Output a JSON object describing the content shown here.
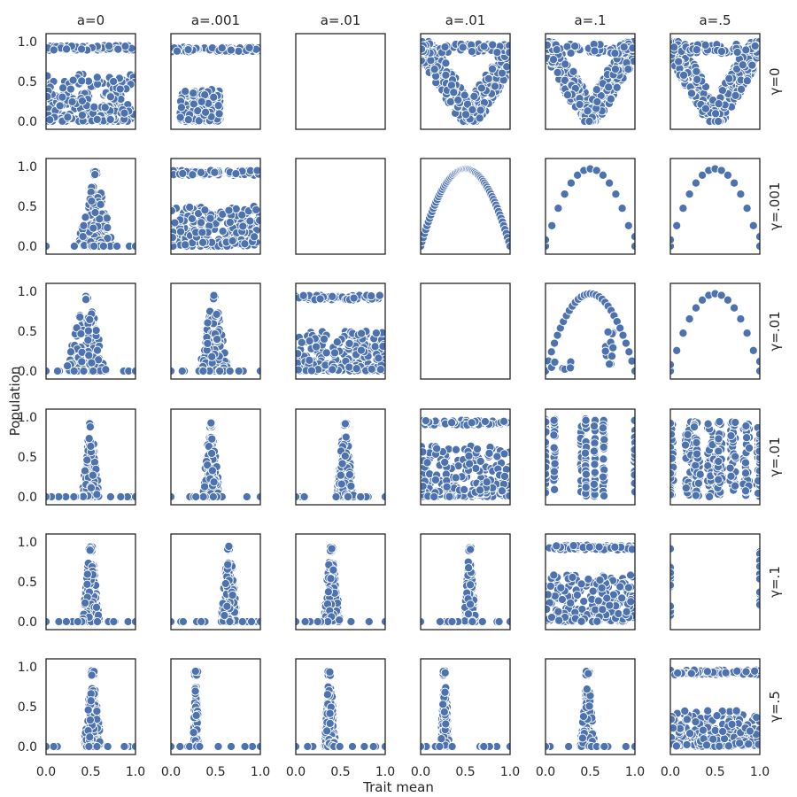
{
  "chart_data": {
    "type": "scatter",
    "xlabel": "Trait mean",
    "ylabel": "Population",
    "xlim": [
      0,
      1
    ],
    "ylim": [
      -0.1,
      1.1
    ],
    "xticks": [
      "0.0",
      "0.5",
      "1.0"
    ],
    "yticks": [
      "0.0",
      "0.5",
      "1.0"
    ],
    "column_titles": [
      "a=0",
      "a=.001",
      "a=.01",
      "a=.01",
      "a=.1",
      "a=.5"
    ],
    "row_titles": [
      "γ=0",
      "γ=.001",
      "γ=.01",
      "γ=.01",
      "γ=.1",
      "γ=.5"
    ],
    "marker_color": "#4c72b0",
    "panels": [
      [
        {
          "pattern": "band_cluster",
          "top": 0.92,
          "lowMax": 0.6
        },
        {
          "pattern": "band_cluster",
          "top": 0.9,
          "lowMax": 0.4,
          "xmin": 0.1,
          "xmax": 0.55
        },
        {
          "pattern": "empty"
        },
        {
          "pattern": "vshape",
          "center": 0.55
        },
        {
          "pattern": "vshape",
          "center": 0.5
        },
        {
          "pattern": "vshape",
          "center": 0.5
        }
      ],
      [
        {
          "pattern": "peak",
          "center": 0.55,
          "top": 0.95,
          "width": 0.06
        },
        {
          "pattern": "band_cluster",
          "top": 0.92,
          "lowMax": 0.5
        },
        {
          "pattern": "empty"
        },
        {
          "pattern": "arch",
          "dense": true
        },
        {
          "pattern": "arch",
          "dense": false
        },
        {
          "pattern": "arch",
          "dense": false
        }
      ],
      [
        {
          "pattern": "peak",
          "center": 0.45,
          "top": 0.95,
          "width": 0.07
        },
        {
          "pattern": "peak",
          "center": 0.48,
          "top": 0.95,
          "width": 0.05
        },
        {
          "pattern": "band_cluster",
          "top": 0.92,
          "lowMax": 0.5
        },
        {
          "pattern": "empty"
        },
        {
          "pattern": "arch_partial"
        },
        {
          "pattern": "arch",
          "dense": false
        }
      ],
      [
        {
          "pattern": "peak",
          "center": 0.5,
          "top": 0.93,
          "width": 0.03
        },
        {
          "pattern": "peak",
          "center": 0.45,
          "top": 0.93,
          "width": 0.03
        },
        {
          "pattern": "peak",
          "center": 0.55,
          "top": 0.93,
          "width": 0.03
        },
        {
          "pattern": "band_cluster",
          "top": 0.93,
          "lowMax": 0.65
        },
        {
          "pattern": "columns",
          "xs": [
            0.0,
            0.1,
            0.4,
            0.45,
            0.55,
            0.65,
            1.0
          ]
        },
        {
          "pattern": "columns_wide"
        }
      ],
      [
        {
          "pattern": "peak",
          "center": 0.5,
          "top": 0.95,
          "width": 0.03
        },
        {
          "pattern": "peak",
          "center": 0.65,
          "top": 0.95,
          "width": 0.03
        },
        {
          "pattern": "peak",
          "center": 0.4,
          "top": 0.93,
          "width": 0.03
        },
        {
          "pattern": "peak",
          "center": 0.55,
          "top": 0.93,
          "width": 0.02
        },
        {
          "pattern": "band_cluster",
          "top": 0.93,
          "lowMax": 0.6
        },
        {
          "pattern": "edges"
        }
      ],
      [
        {
          "pattern": "peak",
          "center": 0.52,
          "top": 0.95,
          "width": 0.03
        },
        {
          "pattern": "peak",
          "center": 0.28,
          "top": 0.95,
          "width": 0.01
        },
        {
          "pattern": "peak",
          "center": 0.38,
          "top": 0.95,
          "width": 0.02
        },
        {
          "pattern": "peak",
          "center": 0.27,
          "top": 0.95,
          "width": 0.015
        },
        {
          "pattern": "peak",
          "center": 0.47,
          "top": 0.95,
          "width": 0.025
        },
        {
          "pattern": "band_cluster",
          "top": 0.93,
          "lowMax": 0.45
        }
      ]
    ]
  }
}
